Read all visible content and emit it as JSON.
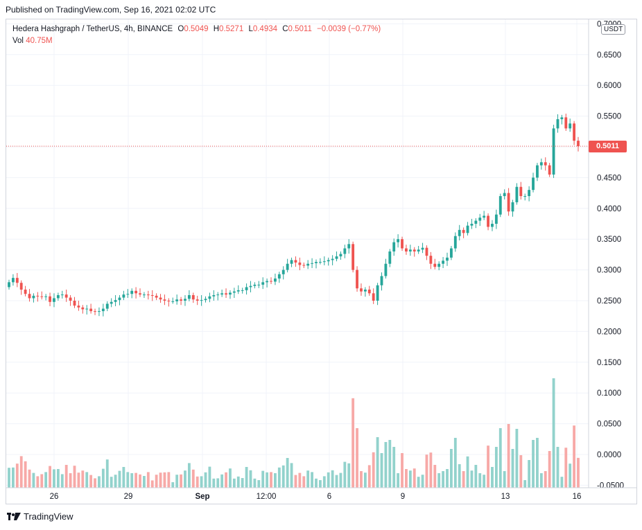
{
  "header": {
    "published": "Published on TradingView.com, Sep 16, 2021 02:02 UTC"
  },
  "legend": {
    "symbol": "Hedera Hashgraph / TetherUS, 4h, BINANCE",
    "o_label": "O",
    "o_value": "0.5049",
    "h_label": "H",
    "h_value": "0.5271",
    "l_label": "L",
    "l_value": "0.4934",
    "c_label": "C",
    "c_value": "0.5011",
    "change": "−0.0039 (−0.77%)",
    "vol_label": "Vol",
    "vol_value": "40.75M"
  },
  "price_axis": {
    "currency": "USDT",
    "last_price": "0.5011"
  },
  "footer": {
    "brand": "TradingView"
  },
  "colors": {
    "up": "#26a69a",
    "down": "#ef5350",
    "up_vol": "#92d2cc",
    "down_vol": "#f7a9a7",
    "grid": "#f0f3fa",
    "last_line": "#ef5350"
  },
  "chart_data": {
    "type": "candlestick",
    "y_ticks": [
      "0.7000",
      "0.6500",
      "0.6000",
      "0.5500",
      "0.5000",
      "0.4500",
      "0.4000",
      "0.3500",
      "0.3000",
      "0.2500",
      "0.2000",
      "0.1500",
      "0.1000",
      "0.0500",
      "0.0000",
      "-0.0500"
    ],
    "x_ticks": [
      "26",
      "29",
      "Sep",
      "12:00",
      "6",
      "9",
      "13",
      "16"
    ],
    "ylim": [
      -0.05,
      0.7
    ],
    "last_price": 0.5011,
    "series": [
      {
        "name": "price",
        "closes": [
          0.28,
          0.287,
          0.279,
          0.268,
          0.261,
          0.254,
          0.258,
          0.257,
          0.256,
          0.257,
          0.248,
          0.254,
          0.259,
          0.26,
          0.255,
          0.25,
          0.242,
          0.239,
          0.236,
          0.237,
          0.233,
          0.232,
          0.233,
          0.237,
          0.245,
          0.248,
          0.251,
          0.255,
          0.26,
          0.261,
          0.266,
          0.262,
          0.26,
          0.26,
          0.259,
          0.258,
          0.255,
          0.252,
          0.25,
          0.249,
          0.249,
          0.252,
          0.25,
          0.253,
          0.259,
          0.252,
          0.25,
          0.251,
          0.253,
          0.257,
          0.259,
          0.26,
          0.262,
          0.26,
          0.263,
          0.265,
          0.267,
          0.267,
          0.272,
          0.274,
          0.276,
          0.276,
          0.28,
          0.282,
          0.281,
          0.286,
          0.293,
          0.3,
          0.31,
          0.316,
          0.312,
          0.308,
          0.307,
          0.31,
          0.311,
          0.313,
          0.313,
          0.314,
          0.316,
          0.318,
          0.322,
          0.326,
          0.335,
          0.342,
          0.3,
          0.27,
          0.265,
          0.268,
          0.262,
          0.25,
          0.275,
          0.29,
          0.31,
          0.33,
          0.345,
          0.35,
          0.335,
          0.33,
          0.333,
          0.33,
          0.333,
          0.336,
          0.323,
          0.31,
          0.305,
          0.31,
          0.315,
          0.32,
          0.335,
          0.355,
          0.365,
          0.36,
          0.372,
          0.375,
          0.38,
          0.385,
          0.388,
          0.37,
          0.375,
          0.39,
          0.42,
          0.425,
          0.395,
          0.41,
          0.435,
          0.42,
          0.42,
          0.43,
          0.45,
          0.47,
          0.475,
          0.47,
          0.455,
          0.53,
          0.545,
          0.548,
          0.53,
          0.538,
          0.51,
          0.5011
        ]
      }
    ],
    "volume_axis_shared": true
  }
}
